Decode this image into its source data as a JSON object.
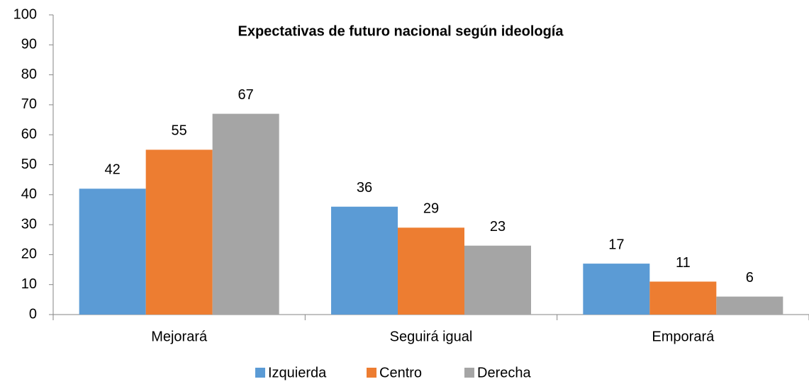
{
  "chart_data": {
    "type": "bar",
    "title": "Expectativas de futuro nacional según ideología",
    "categories": [
      "Mejorará",
      "Seguirá igual",
      "Emporará"
    ],
    "series": [
      {
        "name": "Izquierda",
        "color": "#5b9bd5",
        "values": [
          42,
          36,
          17
        ]
      },
      {
        "name": "Centro",
        "color": "#ed7d31",
        "values": [
          55,
          29,
          11
        ]
      },
      {
        "name": "Derecha",
        "color": "#a5a5a5",
        "values": [
          67,
          23,
          6
        ]
      }
    ],
    "ylim": [
      0,
      100
    ],
    "yticks": [
      0,
      10,
      20,
      30,
      40,
      50,
      60,
      70,
      80,
      90,
      100
    ],
    "grid": false,
    "legend": "bottom"
  }
}
